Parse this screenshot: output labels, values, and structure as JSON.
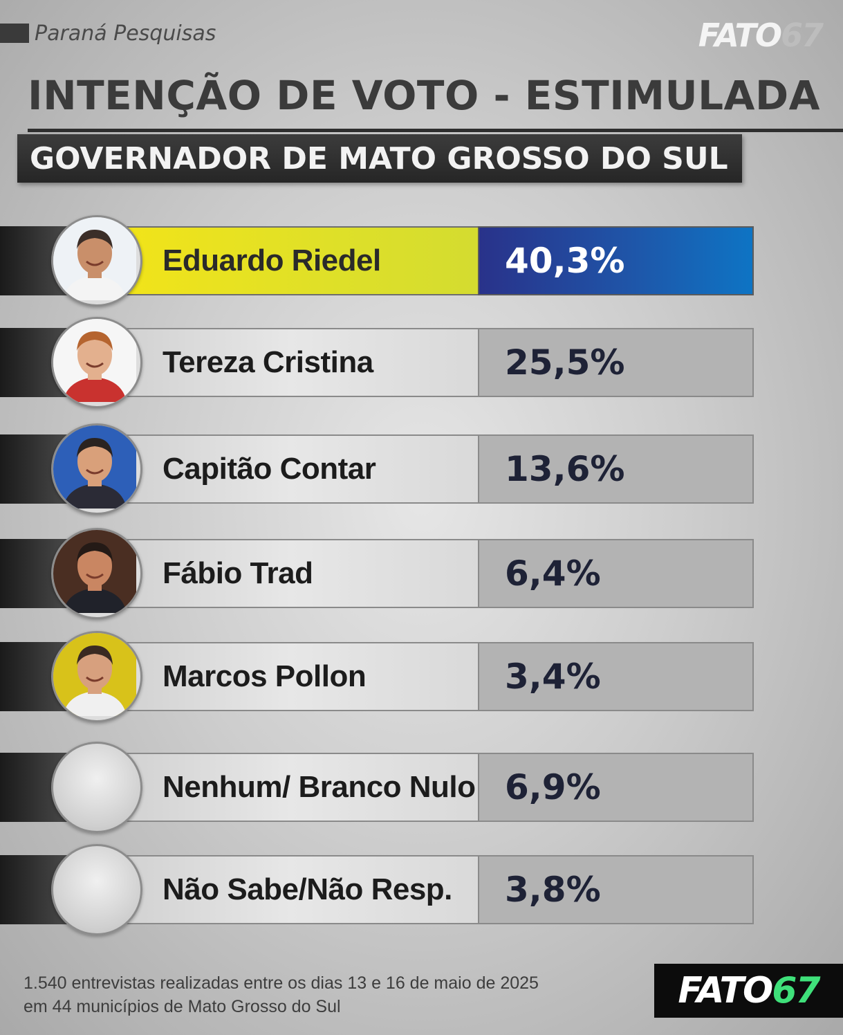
{
  "source": "Paraná Pesquisas",
  "logo": {
    "part1": "FATO",
    "part2": "67"
  },
  "chart_data": {
    "type": "bar",
    "title": "INTENÇÃO DE VOTO - ESTIMULADA",
    "subtitle": "GOVERNADOR DE MATO GROSSO DO SUL",
    "categories": [
      "Eduardo Riedel",
      "Tereza Cristina",
      "Capitão Contar",
      "Fábio Trad",
      "Marcos Pollon",
      "Nenhum/ Branco Nulo",
      "Não Sabe/Não Resp."
    ],
    "values": [
      40.3,
      25.5,
      13.6,
      6.4,
      3.4,
      6.9,
      3.8
    ],
    "value_labels": [
      "40,3%",
      "25,5%",
      "13,6%",
      "6,4%",
      "3,4%",
      "6,9%",
      "3,8%"
    ],
    "unit": "%"
  },
  "colors": {
    "leader_name_bg": "#f3e418",
    "leader_value_bg": "#1f55a8",
    "value_text": "#1e2236",
    "logo_accent": "#3fe07a"
  },
  "footnote": {
    "line1": "1.540 entrevistas realizadas entre os dias 13 e 16 de maio  de 2025",
    "line2": "em 44 municípios de Mato Grosso do Sul"
  }
}
